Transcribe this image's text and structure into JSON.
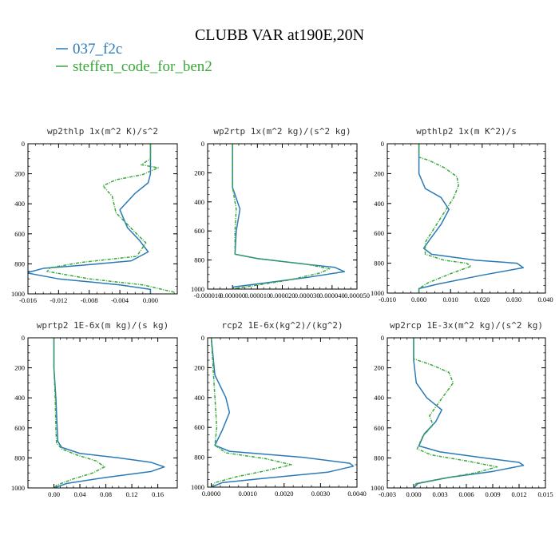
{
  "title": "CLUBB VAR at190E,20N",
  "legend": [
    {
      "label": "037_f2c",
      "color": "#2a7ab8"
    },
    {
      "label": "steffen_code_for_ben2",
      "color": "#3aa83a"
    }
  ],
  "colors": {
    "series1": "#2a7ab8",
    "series2": "#3aa83a"
  },
  "chart_data": [
    {
      "type": "line",
      "title": "wp2thlp   1x(m^2 K)/s^2",
      "xlim": [
        -0.016,
        0.0035
      ],
      "ylim": [
        1000,
        0
      ],
      "xticks": [
        -0.016,
        -0.012,
        -0.008,
        -0.004,
        0.0
      ],
      "xticklabels": [
        "-0.016",
        "-0.012",
        "-0.008",
        "-0.004",
        "0.000"
      ],
      "yticks": [
        0,
        200,
        400,
        600,
        800,
        1000
      ],
      "series": [
        {
          "name": "037_f2c",
          "points": [
            [
              0.0,
              0
            ],
            [
              0.0,
              100
            ],
            [
              0.0,
              200
            ],
            [
              -0.0003,
              260
            ],
            [
              -0.002,
              330
            ],
            [
              -0.004,
              440
            ],
            [
              -0.003,
              560
            ],
            [
              -0.0015,
              640
            ],
            [
              -0.0003,
              720
            ],
            [
              -0.0025,
              780
            ],
            [
              -0.009,
              810
            ],
            [
              -0.014,
              830
            ],
            [
              -0.0162,
              860
            ],
            [
              -0.012,
              900
            ],
            [
              -0.004,
              940
            ],
            [
              0.0,
              970
            ],
            [
              0.0,
              1000
            ]
          ]
        },
        {
          "name": "steffen_code_for_ben2",
          "points": [
            [
              0.0,
              0
            ],
            [
              0.0,
              100
            ],
            [
              -0.0012,
              140
            ],
            [
              0.001,
              160
            ],
            [
              -0.001,
              205
            ],
            [
              -0.0045,
              240
            ],
            [
              -0.0062,
              280
            ],
            [
              -0.005,
              350
            ],
            [
              -0.0045,
              460
            ],
            [
              -0.002,
              590
            ],
            [
              -0.0006,
              660
            ],
            [
              -0.0018,
              750
            ],
            [
              -0.009,
              790
            ],
            [
              -0.013,
              825
            ],
            [
              -0.0135,
              850
            ],
            [
              -0.008,
              900
            ],
            [
              -0.001,
              940
            ],
            [
              0.0032,
              990
            ],
            [
              0.003,
              1000
            ]
          ]
        }
      ]
    },
    {
      "type": "line",
      "title": "wp2rtp   1x(m^2 kg)/(s^2 kg)",
      "xlim": [
        -1e-05,
        5e-05
      ],
      "ylim": [
        1000,
        0
      ],
      "xticks": [
        -1e-05,
        0.0,
        1e-05,
        2e-05,
        3e-05,
        4e-05,
        5e-05
      ],
      "xticklabels": [
        "-0.000010",
        "0.000000",
        "0.000010",
        "0.000020",
        "0.000030",
        "0.000040",
        "0.000050"
      ],
      "yticks": [
        0,
        200,
        400,
        600,
        800,
        1000
      ],
      "series": [
        {
          "name": "037_f2c",
          "points": [
            [
              0.0,
              0
            ],
            [
              0.0,
              300
            ],
            [
              3e-06,
              450
            ],
            [
              1.5e-06,
              600
            ],
            [
              1e-06,
              760
            ],
            [
              1e-05,
              790
            ],
            [
              3e-05,
              830
            ],
            [
              4.1e-05,
              850
            ],
            [
              4.5e-05,
              880
            ],
            [
              3e-05,
              920
            ],
            [
              1.2e-05,
              960
            ],
            [
              5e-07,
              985
            ],
            [
              0.0,
              1000
            ]
          ]
        },
        {
          "name": "steffen_code_for_ben2",
          "points": [
            [
              0.0,
              0
            ],
            [
              0.0,
              300
            ],
            [
              1.5e-06,
              450
            ],
            [
              1e-06,
              600
            ],
            [
              1e-06,
              760
            ],
            [
              1e-05,
              790
            ],
            [
              3e-05,
              830
            ],
            [
              3.9e-05,
              860
            ],
            [
              3.5e-05,
              890
            ],
            [
              2.2e-05,
              940
            ],
            [
              7e-06,
              980
            ],
            [
              0.0,
              1000
            ]
          ]
        }
      ]
    },
    {
      "type": "line",
      "title": "wpthlp2   1x(m K^2)/s",
      "xlim": [
        -0.01,
        0.04
      ],
      "ylim": [
        1000,
        0
      ],
      "xticks": [
        -0.01,
        0.0,
        0.01,
        0.02,
        0.03,
        0.04
      ],
      "xticklabels": [
        "-0.010",
        "0.000",
        "0.010",
        "0.020",
        "0.030",
        "0.040"
      ],
      "yticks": [
        0,
        200,
        400,
        600,
        800,
        1000
      ],
      "series": [
        {
          "name": "037_f2c",
          "points": [
            [
              0.0,
              0
            ],
            [
              0.0,
              100
            ],
            [
              0.0,
              200
            ],
            [
              0.002,
              300
            ],
            [
              0.007,
              360
            ],
            [
              0.0095,
              440
            ],
            [
              0.007,
              540
            ],
            [
              0.0035,
              640
            ],
            [
              0.0015,
              700
            ],
            [
              0.004,
              740
            ],
            [
              0.018,
              780
            ],
            [
              0.031,
              800
            ],
            [
              0.033,
              830
            ],
            [
              0.02,
              880
            ],
            [
              0.006,
              940
            ],
            [
              0.0,
              970
            ],
            [
              0.0,
              1000
            ]
          ]
        },
        {
          "name": "steffen_code_for_ben2",
          "points": [
            [
              0.0,
              0
            ],
            [
              0.0,
              90
            ],
            [
              0.003,
              110
            ],
            [
              0.008,
              160
            ],
            [
              0.012,
              220
            ],
            [
              0.0125,
              280
            ],
            [
              0.011,
              360
            ],
            [
              0.008,
              460
            ],
            [
              0.005,
              560
            ],
            [
              0.002,
              660
            ],
            [
              0.002,
              740
            ],
            [
              0.008,
              780
            ],
            [
              0.015,
              800
            ],
            [
              0.0165,
              820
            ],
            [
              0.01,
              870
            ],
            [
              0.003,
              930
            ],
            [
              0.0,
              970
            ],
            [
              0.0,
              1000
            ]
          ]
        }
      ]
    },
    {
      "type": "line",
      "title": "wprtp2   1E-6x(m kg)/(s kg)",
      "xlim": [
        -0.04,
        0.19
      ],
      "ylim": [
        1000,
        0
      ],
      "xticks": [
        0.0,
        0.04,
        0.08,
        0.12,
        0.16
      ],
      "xticklabels": [
        "0.00",
        "0.04",
        "0.08",
        "0.12",
        "0.16"
      ],
      "yticks": [
        0,
        200,
        400,
        600,
        800,
        1000
      ],
      "series": [
        {
          "name": "037_f2c",
          "points": [
            [
              0.0,
              0
            ],
            [
              0.0,
              200
            ],
            [
              0.003,
              400
            ],
            [
              0.005,
              600
            ],
            [
              0.006,
              690
            ],
            [
              0.012,
              730
            ],
            [
              0.04,
              770
            ],
            [
              0.1,
              800
            ],
            [
              0.15,
              830
            ],
            [
              0.17,
              860
            ],
            [
              0.15,
              890
            ],
            [
              0.08,
              930
            ],
            [
              0.02,
              970
            ],
            [
              0.0,
              1000
            ]
          ]
        },
        {
          "name": "steffen_code_for_ben2",
          "points": [
            [
              0.0,
              0
            ],
            [
              0.0,
              200
            ],
            [
              0.002,
              400
            ],
            [
              0.003,
              600
            ],
            [
              0.004,
              700
            ],
            [
              0.012,
              740
            ],
            [
              0.035,
              780
            ],
            [
              0.065,
              820
            ],
            [
              0.078,
              860
            ],
            [
              0.06,
              900
            ],
            [
              0.03,
              940
            ],
            [
              0.005,
              980
            ],
            [
              0.0,
              1000
            ]
          ]
        }
      ]
    },
    {
      "type": "line",
      "title": "rcp2   1E-6x(kg^2)/(kg^2)",
      "xlim": [
        -0.0001,
        0.004
      ],
      "ylim": [
        1000,
        0
      ],
      "xticks": [
        0.0,
        0.001,
        0.002,
        0.003,
        0.004
      ],
      "xticklabels": [
        "0.0000",
        "0.0010",
        "0.0020",
        "0.0030",
        "0.0040"
      ],
      "yticks": [
        0,
        200,
        400,
        600,
        800,
        1000
      ],
      "series": [
        {
          "name": "037_f2c",
          "points": [
            [
              0.0,
              0
            ],
            [
              0.0001,
              250
            ],
            [
              0.0004,
              400
            ],
            [
              0.0005,
              500
            ],
            [
              0.0003,
              620
            ],
            [
              0.0001,
              720
            ],
            [
              0.0005,
              760
            ],
            [
              0.0025,
              800
            ],
            [
              0.0038,
              840
            ],
            [
              0.0039,
              860
            ],
            [
              0.0032,
              900
            ],
            [
              0.0015,
              940
            ],
            [
              0.0003,
              970
            ],
            [
              0.0,
              1000
            ]
          ]
        },
        {
          "name": "steffen_code_for_ben2",
          "points": [
            [
              0.0,
              0
            ],
            [
              5e-05,
              200
            ],
            [
              0.0001,
              400
            ],
            [
              0.00015,
              600
            ],
            [
              0.0001,
              720
            ],
            [
              0.0004,
              770
            ],
            [
              0.0015,
              810
            ],
            [
              0.0022,
              850
            ],
            [
              0.0015,
              890
            ],
            [
              0.0007,
              930
            ],
            [
              0.0001,
              970
            ],
            [
              0.0,
              1000
            ]
          ]
        }
      ]
    },
    {
      "type": "line",
      "title": "wp2rcp   1E-3x(m^2 kg)/(s^2 kg)",
      "xlim": [
        -0.003,
        0.015
      ],
      "ylim": [
        1000,
        0
      ],
      "xticks": [
        -0.003,
        0.0,
        0.003,
        0.006,
        0.009,
        0.012,
        0.015
      ],
      "xticklabels": [
        "-0.003",
        "0.000",
        "0.003",
        "0.006",
        "0.009",
        "0.012",
        "0.015"
      ],
      "yticks": [
        0,
        200,
        400,
        600,
        800,
        1000
      ],
      "series": [
        {
          "name": "037_f2c",
          "points": [
            [
              0.0,
              0
            ],
            [
              0.0,
              150
            ],
            [
              0.0003,
              300
            ],
            [
              0.0015,
              400
            ],
            [
              0.0032,
              480
            ],
            [
              0.0025,
              560
            ],
            [
              0.0012,
              640
            ],
            [
              0.0006,
              720
            ],
            [
              0.003,
              760
            ],
            [
              0.008,
              800
            ],
            [
              0.012,
              830
            ],
            [
              0.0125,
              850
            ],
            [
              0.009,
              890
            ],
            [
              0.004,
              930
            ],
            [
              0.0005,
              970
            ],
            [
              0.0,
              1000
            ]
          ]
        },
        {
          "name": "steffen_code_for_ben2",
          "points": [
            [
              0.0,
              0
            ],
            [
              0.0,
              140
            ],
            [
              0.002,
              180
            ],
            [
              0.004,
              230
            ],
            [
              0.0045,
              300
            ],
            [
              0.003,
              420
            ],
            [
              0.0018,
              520
            ],
            [
              0.0022,
              580
            ],
            [
              0.001,
              660
            ],
            [
              0.0004,
              740
            ],
            [
              0.002,
              780
            ],
            [
              0.006,
              820
            ],
            [
              0.0095,
              860
            ],
            [
              0.007,
              900
            ],
            [
              0.003,
              940
            ],
            [
              0.0003,
              970
            ],
            [
              0.0,
              1000
            ]
          ]
        }
      ]
    }
  ]
}
